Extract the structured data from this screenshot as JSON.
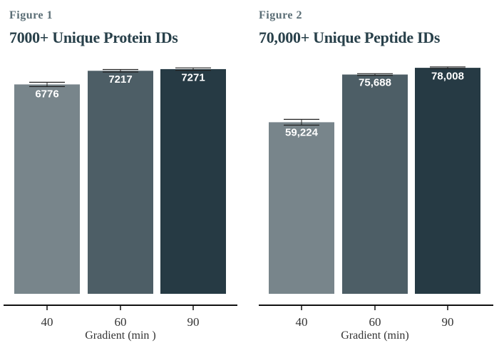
{
  "chart_data": [
    {
      "type": "bar",
      "figure_label": "Figure 1",
      "title": "7000+ Unique Protein IDs",
      "categories": [
        "40",
        "60",
        "90"
      ],
      "values": [
        6776,
        7217,
        7271
      ],
      "value_labels": [
        "6776",
        "7217",
        "7271"
      ],
      "error": [
        70,
        40,
        40
      ],
      "colors": [
        "#78858b",
        "#4d5e66",
        "#263a44"
      ],
      "xlabel": "Gradient (min )",
      "ylabel": "",
      "ylim": [
        0,
        7500
      ],
      "grid": false
    },
    {
      "type": "bar",
      "figure_label": "Figure 2",
      "title": "70,000+ Unique Peptide IDs",
      "categories": [
        "40",
        "60",
        "90"
      ],
      "values": [
        59224,
        75688,
        78008
      ],
      "value_labels": [
        "59,224",
        "75,688",
        "78,008"
      ],
      "error": [
        1000,
        300,
        300
      ],
      "colors": [
        "#78858b",
        "#4d5e66",
        "#263a44"
      ],
      "xlabel": "Gradient (min)",
      "ylabel": "",
      "ylim": [
        0,
        80000
      ],
      "grid": false
    }
  ]
}
